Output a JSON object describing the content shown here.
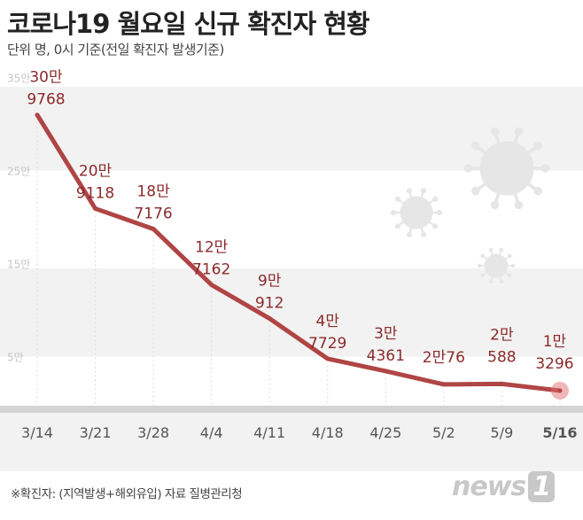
{
  "title": "코로나19 월요일 신규 확진자 현황",
  "subtitle": "단위  명, 0시 기준(전일 확진자 발생기준)",
  "footnote": "※확진자: (지역발생+해외유입)  자료  질병관리청",
  "logo": "news1",
  "colors": {
    "line": "#b04545",
    "label": "#8b2a2a",
    "band": "#f2f2f2"
  },
  "chart_data": {
    "type": "line",
    "title": "코로나19 월요일 신규 확진자 현황",
    "categories": [
      "3/14",
      "3/21",
      "3/28",
      "4/4",
      "4/11",
      "4/18",
      "4/25",
      "5/2",
      "5/9",
      "5/16"
    ],
    "values": [
      309768,
      209118,
      187176,
      127162,
      90912,
      47729,
      34361,
      20076,
      20588,
      13296
    ],
    "data_labels": [
      [
        "30만",
        "9768"
      ],
      [
        "20만",
        "9118"
      ],
      [
        "18만",
        "7176"
      ],
      [
        "12만",
        "7162"
      ],
      [
        "9만",
        "912"
      ],
      [
        "4만",
        "7729"
      ],
      [
        "3만",
        "4361"
      ],
      [
        "2만76"
      ],
      [
        "2만",
        "588"
      ],
      [
        "1만",
        "3296"
      ]
    ],
    "yticks": [
      {
        "value": 350000,
        "label": "35만"
      },
      {
        "value": 250000,
        "label": "25만"
      },
      {
        "value": 150000,
        "label": "15만"
      },
      {
        "value": 50000,
        "label": "5만"
      }
    ],
    "ylim": [
      0,
      350000
    ],
    "highlight": "5/16",
    "grid": false
  }
}
